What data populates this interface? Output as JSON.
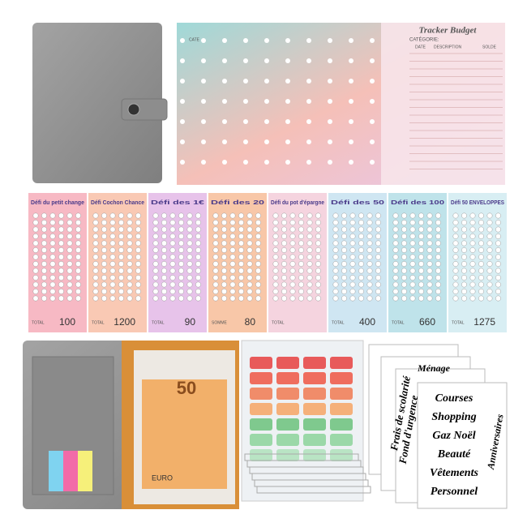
{
  "tracker": {
    "title": "Tracker Budget",
    "category": "CATÉGORIE:",
    "columns": [
      "DATE",
      "DESCRIPTION",
      "SOLDE"
    ],
    "back_label": "CATE"
  },
  "challenges": [
    {
      "title": "Défi du petit change",
      "total_label": "TOTAL",
      "total": "100"
    },
    {
      "title": "Défi Cochon Chance",
      "total_label": "TOTAL",
      "total": "1200"
    },
    {
      "title": "Défi des 1€",
      "total_label": "TOTAL",
      "total": "90"
    },
    {
      "title": "Défi des 20",
      "total_label": "SOMME",
      "total": "80"
    },
    {
      "title": "Défi du pot d'épargne",
      "total_label": "TOTAL",
      "total": ""
    },
    {
      "title": "Défi des 50",
      "total_label": "TOTAL",
      "total": "400"
    },
    {
      "title": "Défi des 100",
      "total_label": "TOTAL",
      "total": "660"
    },
    {
      "title": "Défi 50 ENVELOPPES",
      "total_label": "TOTAL",
      "total": "1275"
    }
  ],
  "banknote": {
    "value": "50",
    "currency": "EURO"
  },
  "stickers": {
    "front": [
      "Courses",
      "Shopping",
      "Gaz Noël",
      "Beauté",
      "Vêtements",
      "Personnel"
    ],
    "vertical": "Anniversaires",
    "back": [
      "Frais de scolarité",
      "Fond d'urgence",
      "Ménage"
    ]
  }
}
